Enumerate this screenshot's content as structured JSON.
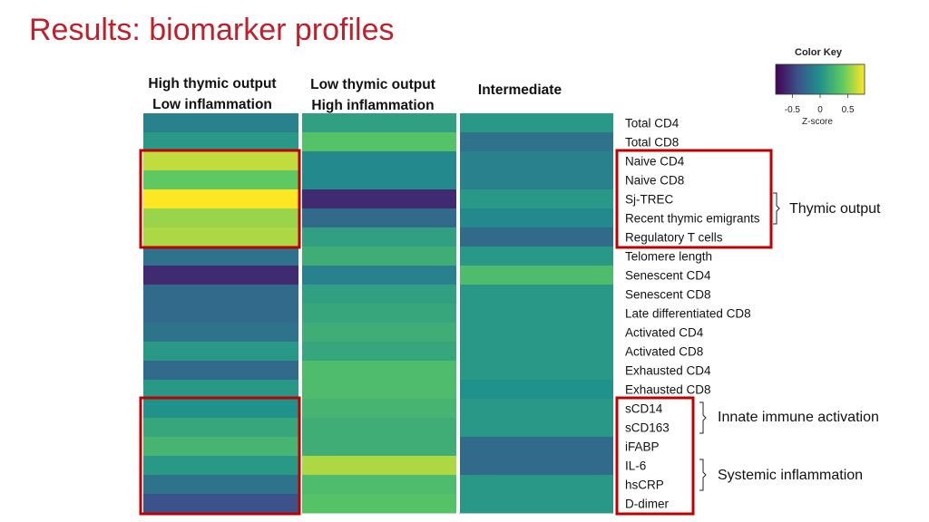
{
  "slide": {
    "title": "Results: biomarker profiles"
  },
  "chart_data": {
    "type": "heatmap",
    "columns": [
      [
        "High thymic output",
        "Low inflammation"
      ],
      [
        "Low thymic output",
        "High inflammation"
      ],
      [
        "Intermediate"
      ]
    ],
    "rows": [
      "Total CD4",
      "Total CD8",
      "Naive CD4",
      "Naive CD8",
      "Sj-TREC",
      "Recent thymic emigrants",
      "Regulatory T cells",
      "Telomere length",
      "Senescent CD4",
      "Senescent CD8",
      "Late differentiated CD8",
      "Activated CD4",
      "Activated CD8",
      "Exhausted CD4",
      "Exhausted CD8",
      "sCD14",
      "sCD163",
      "iFABP",
      "IL-6",
      "hsCRP",
      "D-dimer"
    ],
    "values": [
      [
        -0.1,
        0.1,
        0.05
      ],
      [
        0.05,
        0.35,
        -0.2
      ],
      [
        0.65,
        -0.05,
        -0.1
      ],
      [
        0.4,
        -0.05,
        -0.1
      ],
      [
        0.8,
        -0.6,
        0.05
      ],
      [
        0.55,
        -0.25,
        -0.05
      ],
      [
        0.6,
        0.1,
        -0.25
      ],
      [
        -0.2,
        0.2,
        0.05
      ],
      [
        -0.6,
        -0.1,
        0.3
      ],
      [
        -0.25,
        0.1,
        0.05
      ],
      [
        -0.25,
        0.15,
        0.05
      ],
      [
        -0.2,
        0.2,
        0.05
      ],
      [
        0.05,
        0.15,
        0.05
      ],
      [
        -0.25,
        0.3,
        0.05
      ],
      [
        0.05,
        0.3,
        0.0
      ],
      [
        0.0,
        0.25,
        0.05
      ],
      [
        0.15,
        0.2,
        0.05
      ],
      [
        0.25,
        0.2,
        -0.25
      ],
      [
        0.05,
        0.6,
        -0.25
      ],
      [
        -0.2,
        0.3,
        0.05
      ],
      [
        -0.4,
        0.35,
        0.05
      ]
    ],
    "color_key": {
      "title": "Color Key",
      "xlabel": "Z-score",
      "ticks": [
        "-0.5",
        "0",
        "0.5"
      ],
      "range": [
        -0.8,
        0.8
      ],
      "colormap": "viridis"
    },
    "groups": [
      {
        "label": "Thymic output",
        "rows": [
          "Naive CD4",
          "Naive CD8",
          "Sj-TREC",
          "Recent thymic emigrants",
          "Regulatory T cells"
        ]
      },
      {
        "label": "Innate immune activation",
        "rows": [
          "sCD14",
          "sCD163"
        ]
      },
      {
        "label": "Systemic inflammation",
        "rows": [
          "IL-6",
          "hsCRP",
          "D-dimer"
        ]
      }
    ],
    "highlight_color": "#c00000"
  }
}
